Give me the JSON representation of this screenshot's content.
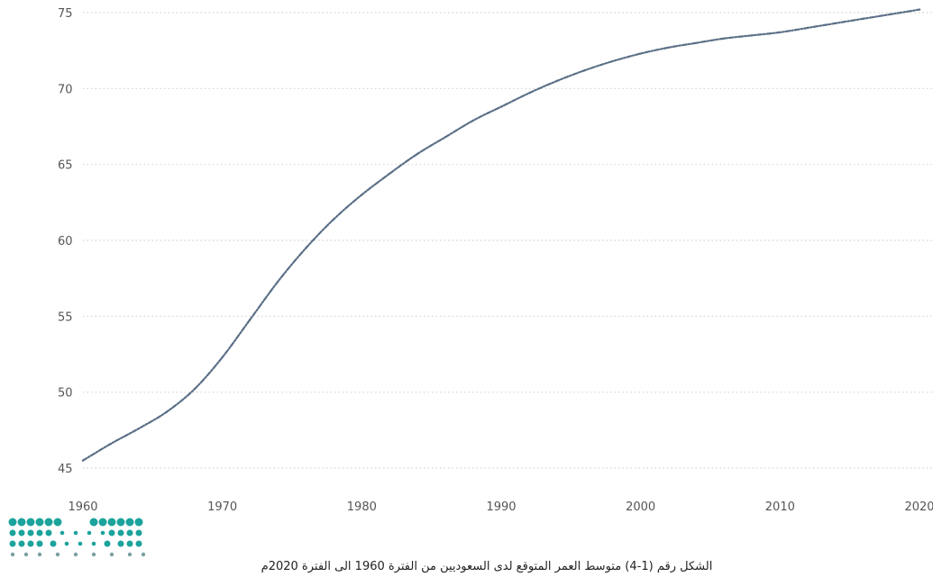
{
  "chart_data": {
    "type": "line",
    "title": "",
    "xlabel": "",
    "ylabel": "",
    "xlim": [
      1960,
      2020
    ],
    "ylim": [
      45,
      75
    ],
    "grid": true,
    "grid_style": "dotted horizontal",
    "x_ticks": [
      1960,
      1970,
      1980,
      1990,
      2000,
      2010,
      2020
    ],
    "y_ticks": [
      45,
      50,
      55,
      60,
      65,
      70,
      75
    ],
    "series": [
      {
        "color": "#5a6f86",
        "line_style": "dash-dot",
        "x": [
          1960,
          1962,
          1964,
          1966,
          1968,
          1970,
          1972,
          1974,
          1976,
          1978,
          1980,
          1982,
          1984,
          1986,
          1988,
          1990,
          1992,
          1994,
          1996,
          1998,
          2000,
          2002,
          2004,
          2006,
          2008,
          2010,
          2012,
          2014,
          2016,
          2018,
          2020
        ],
        "y": [
          45.5,
          46.6,
          47.6,
          48.7,
          50.2,
          52.3,
          54.8,
          57.3,
          59.5,
          61.4,
          63.0,
          64.4,
          65.7,
          66.8,
          67.9,
          68.8,
          69.7,
          70.5,
          71.2,
          71.8,
          72.3,
          72.7,
          73.0,
          73.3,
          73.5,
          73.7,
          74.0,
          74.3,
          74.6,
          74.9,
          75.2
        ]
      }
    ]
  },
  "caption": "الشكل رقم (1-4) متوسط العمر المتوقع لدى السعوديين من الفترة 1960 الى الفترة 2020م",
  "logo": {
    "name": "ministry-of-education-logo",
    "color": "#1ba39c"
  }
}
